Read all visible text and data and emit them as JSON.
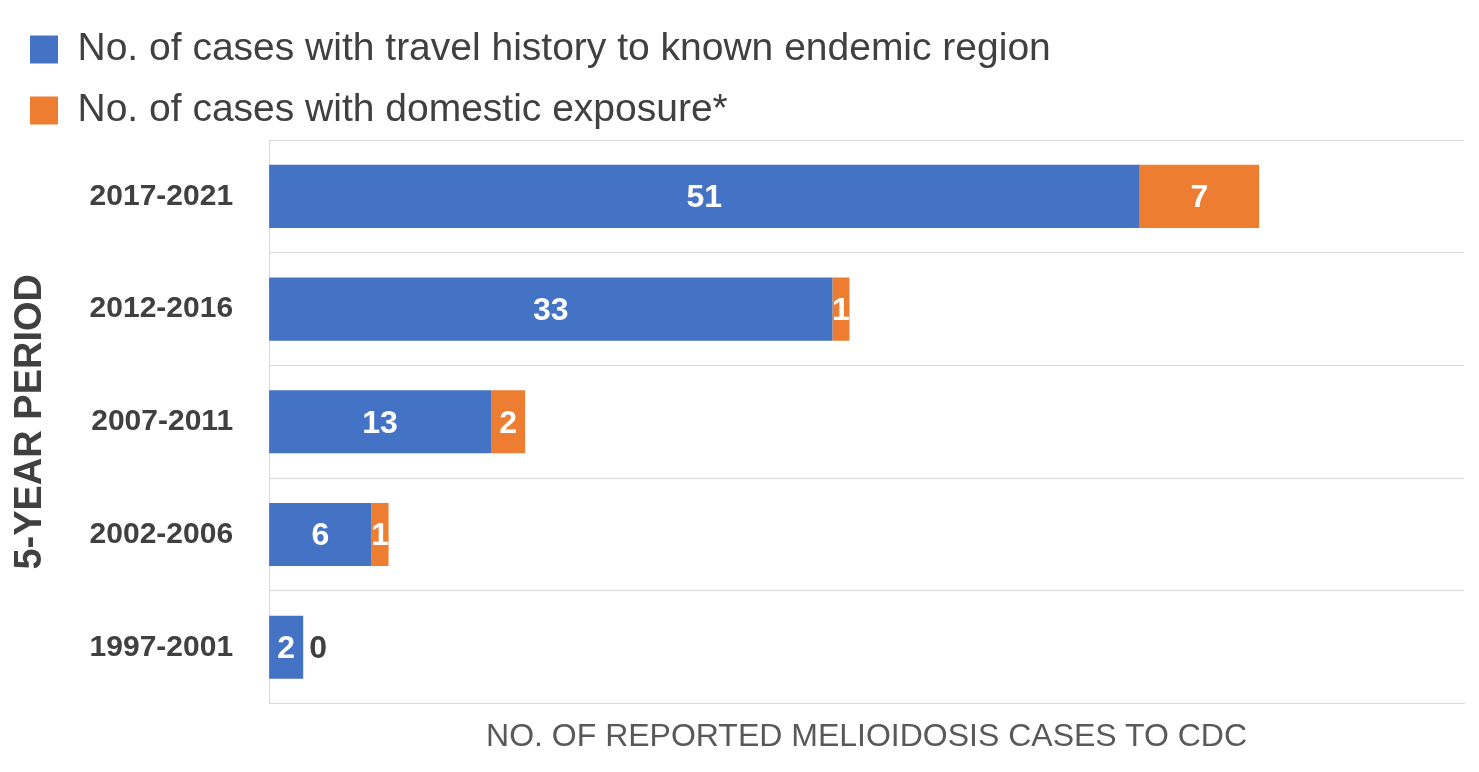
{
  "chart_data": {
    "type": "bar",
    "orientation": "horizontal",
    "stacked": true,
    "categories": [
      "2017-2021",
      "2012-2016",
      "2007-2011",
      "2002-2006",
      "1997-2001"
    ],
    "series": [
      {
        "name": "No. of cases with travel history to known endemic region",
        "color": "#4472c4",
        "values": [
          51,
          33,
          13,
          6,
          2
        ]
      },
      {
        "name": "No. of cases with domestic exposure*",
        "color": "#ed7d31",
        "values": [
          7,
          1,
          2,
          1,
          0
        ]
      }
    ],
    "xlim": [
      0,
      70
    ],
    "xlabel": "NO. OF REPORTED MELIOIDOSIS CASES TO CDC",
    "ylabel": "5-YEAR PERIOD",
    "data_labels": true,
    "grid": "y",
    "legend": "top left"
  }
}
